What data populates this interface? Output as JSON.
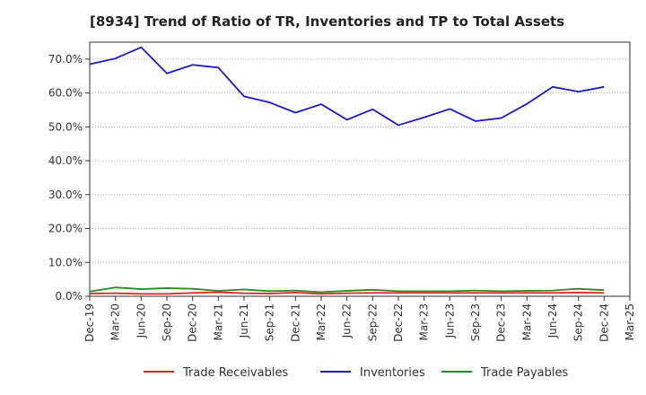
{
  "chart_data": {
    "type": "line",
    "title": "[8934]  Trend of Ratio of TR, Inventories and TP to Total Assets",
    "xlabel": "",
    "ylabel": "",
    "ylim": [
      0,
      75
    ],
    "y_ticks": [
      0,
      10,
      20,
      30,
      40,
      50,
      60,
      70
    ],
    "y_tick_labels": [
      "0.0%",
      "10.0%",
      "20.0%",
      "30.0%",
      "40.0%",
      "50.0%",
      "60.0%",
      "70.0%"
    ],
    "x_tick_labels": [
      "Dec-19",
      "Mar-20",
      "Jun-20",
      "Sep-20",
      "Dec-20",
      "Mar-21",
      "Jun-21",
      "Sep-21",
      "Dec-21",
      "Mar-22",
      "Jun-22",
      "Sep-22",
      "Dec-22",
      "Mar-23",
      "Jun-23",
      "Sep-23",
      "Dec-23",
      "Mar-24",
      "Jun-24",
      "Sep-24",
      "Dec-24",
      "Mar-25"
    ],
    "categories": [
      "Dec-19",
      "Mar-20",
      "Jun-20",
      "Sep-20",
      "Dec-20",
      "Mar-21",
      "Jun-21",
      "Sep-21",
      "Dec-21",
      "Mar-22",
      "Jun-22",
      "Sep-22",
      "Dec-22",
      "Mar-23",
      "Jun-23",
      "Sep-23",
      "Dec-23",
      "Mar-24",
      "Jun-24",
      "Sep-24",
      "Dec-24"
    ],
    "grid": true,
    "legend_position": "bottom",
    "series": [
      {
        "name": "Trade Receivables",
        "color": "#dd2222",
        "values": [
          0.8,
          0.9,
          0.7,
          0.7,
          1.0,
          1.2,
          0.9,
          0.8,
          1.1,
          0.7,
          0.9,
          1.0,
          1.0,
          1.0,
          1.0,
          1.0,
          1.0,
          1.0,
          1.0,
          1.1,
          1.0
        ]
      },
      {
        "name": "Inventories",
        "color": "#1a1acc",
        "values": [
          68.5,
          70.2,
          73.5,
          65.8,
          68.3,
          67.5,
          59.0,
          57.2,
          54.2,
          56.7,
          52.1,
          55.2,
          50.5,
          52.8,
          55.3,
          51.7,
          52.6,
          56.8,
          61.8,
          60.4,
          61.8
        ]
      },
      {
        "name": "Trade Payables",
        "color": "#2a8a2a",
        "values": [
          1.4,
          2.6,
          2.1,
          2.4,
          2.2,
          1.6,
          2.0,
          1.5,
          1.7,
          1.2,
          1.6,
          1.9,
          1.5,
          1.5,
          1.5,
          1.7,
          1.5,
          1.6,
          1.7,
          2.2,
          1.8
        ]
      }
    ]
  }
}
